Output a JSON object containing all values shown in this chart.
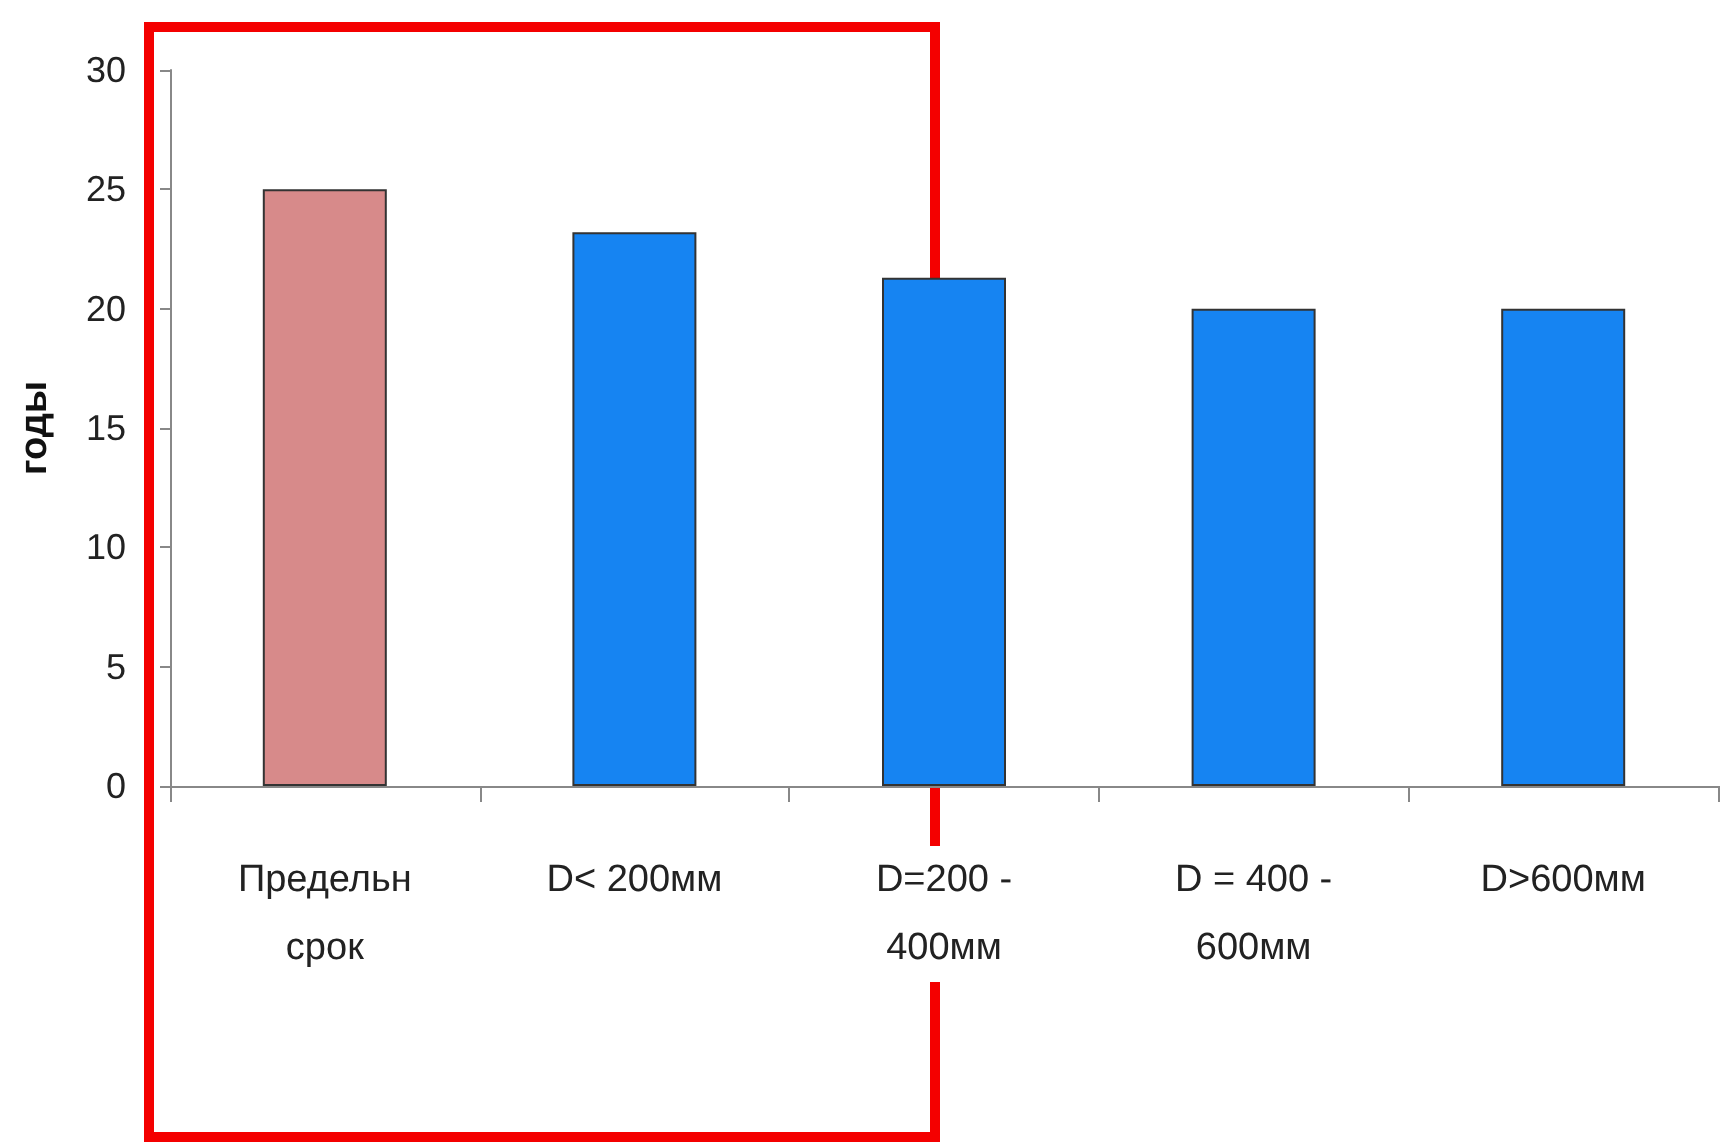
{
  "chart_data": {
    "type": "bar",
    "ylabel": "годы",
    "categories": [
      "Предельн срок",
      "D< 200мм",
      "D=200 - 400мм",
      "D = 400 - 600мм",
      "D>600мм"
    ],
    "values": [
      25,
      23.2,
      21.3,
      20,
      20
    ],
    "colors": [
      "#d78a8a",
      "#1684f2",
      "#1684f2",
      "#1684f2",
      "#1684f2"
    ],
    "ylim": [
      0,
      30
    ],
    "yticks": [
      0,
      5,
      10,
      15,
      20,
      25,
      30
    ],
    "grid": false
  }
}
